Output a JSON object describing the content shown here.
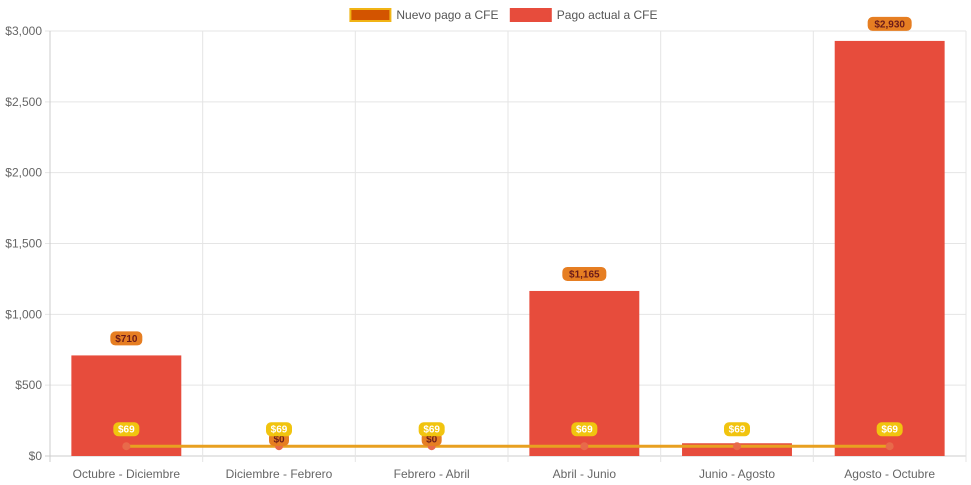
{
  "chart_data": {
    "type": "bar",
    "categories": [
      "Octubre - Diciembre",
      "Diciembre - Febrero",
      "Febrero - Abril",
      "Abril - Junio",
      "Junio - Agosto",
      "Agosto - Octubre"
    ],
    "series": [
      {
        "name": "Nuevo pago a CFE",
        "type": "line",
        "values": [
          69,
          69,
          69,
          69,
          69,
          69
        ],
        "labels": [
          "$69",
          "$69",
          "$69",
          "$69",
          "$69",
          "$69"
        ],
        "color": "#e8a020",
        "point_color": "#e86a4a"
      },
      {
        "name": "Pago actual a CFE",
        "type": "bar",
        "values": [
          710,
          0,
          0,
          1165,
          90,
          2930
        ],
        "labels": [
          "$710",
          "$0",
          "$0",
          "$1,165",
          "",
          "$2,930"
        ],
        "color": "#e74c3c"
      }
    ],
    "legend": {
      "position": "top",
      "items": [
        {
          "label": "Nuevo pago a CFE",
          "color": "#d35400",
          "border": "#f1b415"
        },
        {
          "label": "Pago actual a CFE",
          "color": "#e74c3c",
          "border": "#e74c3c"
        }
      ]
    },
    "y_ticks": [
      "$0",
      "$500",
      "$1,000",
      "$1,500",
      "$2,000",
      "$2,500",
      "$3,000"
    ],
    "y_tick_values": [
      0,
      500,
      1000,
      1500,
      2000,
      2500,
      3000
    ],
    "ylim": [
      0,
      3000
    ],
    "grid": true,
    "colors": {
      "grid": "#e5e5e5",
      "axis": "#cccccc",
      "bar_label_bg": "#e67e22",
      "bar_label_text": "#6b1a1a",
      "line_label_bg": "#f1c40f",
      "line_label_text": "#ffffff"
    }
  }
}
